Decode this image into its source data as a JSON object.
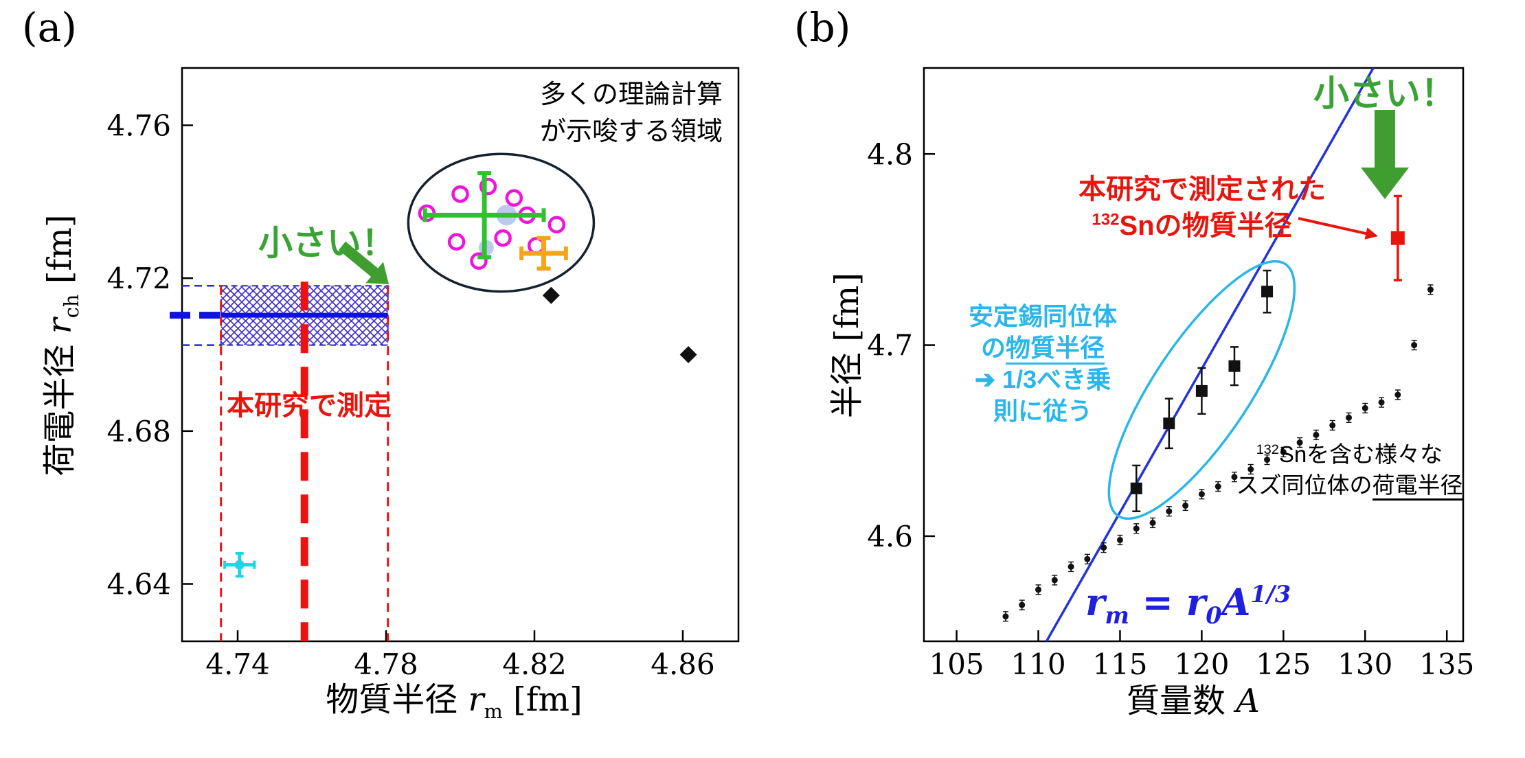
{
  "colors": {
    "green_accent": "#3aa335",
    "arrow_green": "#3f9e2f",
    "red_accent": "#e8150d",
    "blue_accent": "#1111dd",
    "line_blue": "#2233dd",
    "cyan_accent": "#29b6ea",
    "magenta": "#f013dd",
    "orange": "#f6a41c",
    "cyan_point": "#19d7e6"
  },
  "chart_data": [
    {
      "id": "a",
      "type": "scatter",
      "panel_label": "(a)",
      "xlabel": {
        "prefix": "物質半径 ",
        "var": "r",
        "sub": "m",
        "suffix": " [fm]"
      },
      "ylabel": {
        "prefix": "荷電半径 ",
        "var": "r",
        "sub": "ch",
        "suffix": " [fm]"
      },
      "xlim": [
        4.725,
        4.875
      ],
      "ylim": [
        4.625,
        4.775
      ],
      "xticks": [
        4.74,
        4.78,
        4.82,
        4.86
      ],
      "yticks": [
        4.64,
        4.68,
        4.72,
        4.76
      ],
      "grid": false,
      "measured_band": {
        "x_low": 4.7355,
        "x_center": 4.758,
        "x_high": 4.7805,
        "y_low": 4.7025,
        "y_center": 4.7103,
        "y_high": 4.718
      },
      "theory_ellipse": {
        "cx": 4.811,
        "cy": 4.7345,
        "rx": 0.025,
        "ry": 0.018
      },
      "series": [
        {
          "name": "theory-shaded",
          "marker": "filled-circle",
          "color": "#b9c6ee",
          "points": [
            [
              4.8125,
              4.7365
            ],
            [
              4.807,
              4.728
            ]
          ]
        },
        {
          "name": "theory-calculations",
          "marker": "open-circle",
          "color": "#f013dd",
          "points": [
            [
              4.791,
              4.737
            ],
            [
              4.8,
              4.742
            ],
            [
              4.8075,
              4.744
            ],
            [
              4.8145,
              4.741
            ],
            [
              4.799,
              4.7295
            ],
            [
              4.805,
              4.7245
            ],
            [
              4.8115,
              4.7305
            ],
            [
              4.818,
              4.7365
            ],
            [
              4.8205,
              4.7285
            ],
            [
              4.826,
              4.734
            ]
          ]
        },
        {
          "name": "theory-cross-green",
          "marker": "errorbar",
          "color": "#2fc22f",
          "points": [
            {
              "x": 4.8065,
              "y": 4.7365,
              "xerr": 0.016,
              "yerr": 0.011
            }
          ]
        },
        {
          "name": "theory-cross-orange",
          "marker": "errorbar",
          "color": "#f6a41c",
          "points": [
            {
              "x": 4.8225,
              "y": 4.7265,
              "xerr": 0.006,
              "yerr": 0.004
            }
          ]
        },
        {
          "name": "black-diamonds",
          "marker": "diamond",
          "color": "#111111",
          "points": [
            [
              4.8245,
              4.7155
            ],
            [
              4.8615,
              4.7
            ]
          ]
        },
        {
          "name": "cyan-datum",
          "marker": "errorbar-dot",
          "color": "#19d7e6",
          "points": [
            {
              "x": 4.7405,
              "y": 4.645,
              "xerr": 0.004,
              "yerr": 0.003
            }
          ]
        }
      ],
      "annotations": {
        "theory_region_1": "多くの理論計算",
        "theory_region_2": "が示唆する領域",
        "small": "小さい！",
        "measured": "本研究で測定"
      }
    },
    {
      "id": "b",
      "type": "scatter",
      "panel_label": "(b)",
      "xlabel": {
        "prefix": "質量数 ",
        "var": "A"
      },
      "ylabel": "半径 [fm]",
      "xlim": [
        103,
        136
      ],
      "ylim": [
        4.545,
        4.845
      ],
      "xticks": [
        105,
        110,
        115,
        120,
        125,
        130,
        135
      ],
      "yticks": [
        4.6,
        4.7,
        4.8
      ],
      "grid": false,
      "powerlaw_line": {
        "x1": 110.5,
        "y1": 4.545,
        "x2": 130.5,
        "y2": 4.845
      },
      "series": [
        {
          "name": "sn-charge-radii",
          "marker": "dot",
          "color": "#111111",
          "yerr": 0.0025,
          "points": [
            [
              108,
              4.558
            ],
            [
              109,
              4.564
            ],
            [
              110,
              4.572
            ],
            [
              111,
              4.577
            ],
            [
              112,
              4.584
            ],
            [
              113,
              4.588
            ],
            [
              114,
              4.594
            ],
            [
              115,
              4.598
            ],
            [
              116,
              4.604
            ],
            [
              117,
              4.607
            ],
            [
              118,
              4.613
            ],
            [
              119,
              4.616
            ],
            [
              120,
              4.622
            ],
            [
              121,
              4.626
            ],
            [
              122,
              4.631
            ],
            [
              123,
              4.635
            ],
            [
              124,
              4.64
            ],
            [
              125,
              4.644
            ],
            [
              126,
              4.649
            ],
            [
              127,
              4.653
            ],
            [
              128,
              4.658
            ],
            [
              129,
              4.662
            ],
            [
              130,
              4.667
            ],
            [
              131,
              4.67
            ],
            [
              132,
              4.674
            ],
            [
              133,
              4.7
            ],
            [
              134,
              4.729
            ]
          ]
        },
        {
          "name": "sn-stable-matter-radii",
          "marker": "square-errorbar",
          "color": "#111111",
          "points": [
            {
              "x": 116,
              "y": 4.625,
              "yerr": 0.012
            },
            {
              "x": 118,
              "y": 4.659,
              "yerr": 0.013
            },
            {
              "x": 120,
              "y": 4.676,
              "yerr": 0.012
            },
            {
              "x": 122,
              "y": 4.689,
              "yerr": 0.01
            },
            {
              "x": 124,
              "y": 4.728,
              "yerr": 0.011
            }
          ]
        },
        {
          "name": "sn132-matter-radius",
          "marker": "square-errorbar",
          "color": "#e8150d",
          "points": [
            {
              "x": 132,
              "y": 4.756,
              "yerr": 0.022
            }
          ]
        }
      ],
      "annotations": {
        "small": "小さい！",
        "red_note_1": "本研究で測定された",
        "red_note_sup": "132",
        "red_note_2": "Snの物質半径",
        "cyan_note_1": "安定錫同位体",
        "cyan_note_2a": "の",
        "cyan_note_2b": "物質半径",
        "cyan_note_3": "➔ 1/3べき乗",
        "cyan_note_4": "則に従う",
        "black_note_sup": "132",
        "black_note_1": "Snを含む様々な",
        "black_note_2a": "スズ同位体の",
        "black_note_2b": "荷電半径",
        "formula": {
          "v1": "r",
          "s1": "m",
          "eq": " = ",
          "v2": "r",
          "s2": "0",
          "v3": "A",
          "sup": "1/3"
        }
      }
    }
  ]
}
